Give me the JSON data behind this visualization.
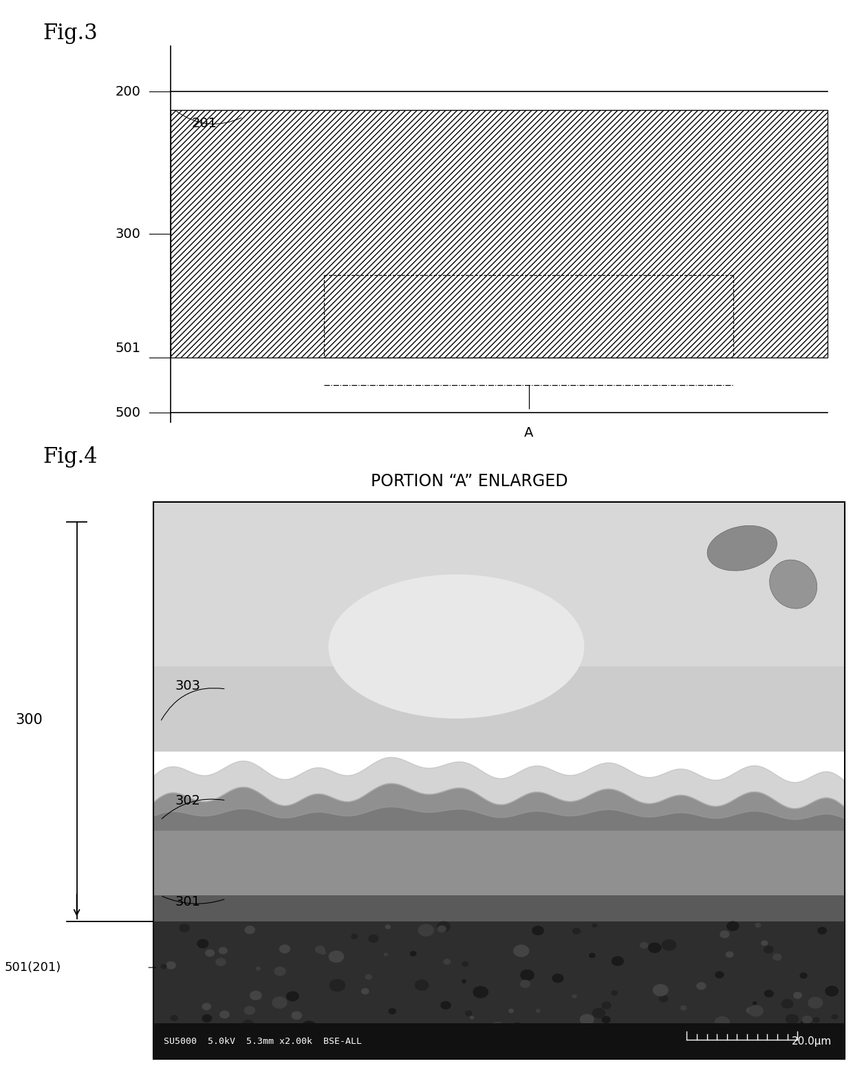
{
  "fig3_title": "Fig.3",
  "fig4_title": "Fig.4",
  "fig4_subtitle": "PORTION “A” ENLARGED",
  "bg_color": "#ffffff",
  "label_200": "200",
  "label_201": "201",
  "label_300": "300",
  "label_301": "301",
  "label_302": "302",
  "label_303": "303",
  "label_500": "500",
  "label_501": "501",
  "label_501_201": "501(201)",
  "label_A": "A",
  "sem_info": "SU5000  5.0kV  5.3mm x2.00k  BSE-ALL",
  "scale_bar": "20.0μm"
}
